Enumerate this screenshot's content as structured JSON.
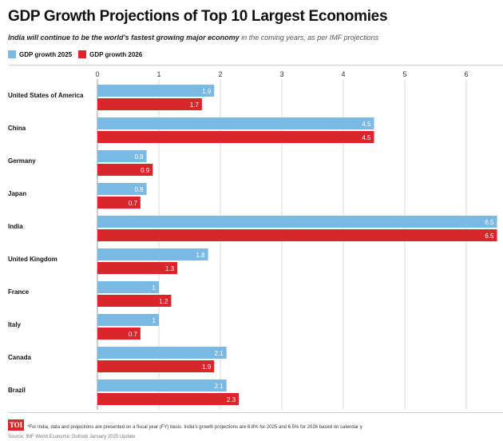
{
  "header": {
    "title": "GDP Growth Projections of Top 10 Largest Economies",
    "subtitle_bold": "India will continue to be the world's fastest growing major economy",
    "subtitle_rest": " in the coming years, as per IMF projections"
  },
  "colors": {
    "series_2025": "#7ab9e3",
    "series_2026": "#d8262b"
  },
  "chart_data": {
    "type": "bar",
    "orientation": "horizontal",
    "categories": [
      "United States of America",
      "China",
      "Germany",
      "Japan",
      "India",
      "United Kingdom",
      "France",
      "Italy",
      "Canada",
      "Brazil"
    ],
    "series": [
      {
        "name": "GDP growth 2025",
        "values": [
          1.9,
          4.5,
          0.8,
          0.8,
          6.5,
          1.8,
          1,
          1,
          2.1,
          2.1
        ],
        "labels": [
          "1.9",
          "4.5",
          "0.8",
          "0.8",
          "6.5",
          "1.8",
          "1",
          "1",
          "2.1",
          "2.1"
        ]
      },
      {
        "name": "GDP growth 2026",
        "values": [
          1.7,
          4.5,
          0.9,
          0.7,
          6.5,
          1.3,
          1.2,
          0.7,
          1.9,
          2.3
        ],
        "labels": [
          "1.7",
          "4.5",
          "0.9",
          "0.7",
          "6.5",
          "1.3",
          "1.2",
          "0.7",
          "1.9",
          "2.3"
        ]
      }
    ],
    "x_ticks": [
      "0",
      "1",
      "2",
      "3",
      "4",
      "5",
      "6"
    ],
    "xlim": [
      0,
      6.6
    ],
    "grid": true,
    "legend_position": "top-left"
  },
  "footer": {
    "logo_text": "TOI",
    "footnote": "*For India, data and projections are presented on a fiscal year (FY) basis. India's growth projections are 6.8% for 2025 and 6.5% for 2026 based on calendar y",
    "source": "Source: IMF World Economic Outlook January 2025 Update"
  }
}
